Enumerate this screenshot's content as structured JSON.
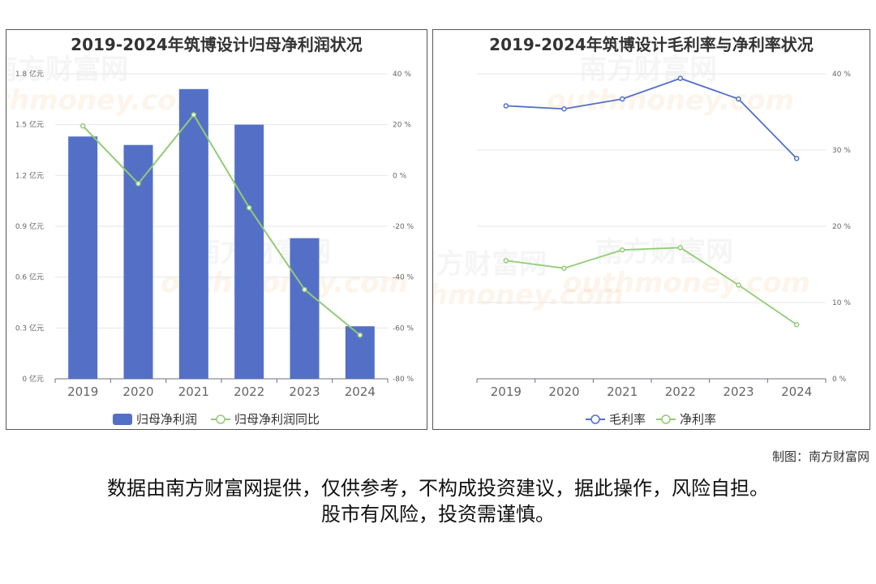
{
  "charts": [
    {
      "title": "2019-2024年筑博设计归母净利润状况",
      "legend": [
        "归母净利润",
        "归母净利润同比"
      ]
    },
    {
      "title": "2019-2024年筑博设计毛利率与净利率状况",
      "legend": [
        "毛利率",
        "净利率"
      ]
    }
  ],
  "watermark": {
    "cn": "南方财富网",
    "en": "outhmoney.com",
    "en_full": "southmoney.com"
  },
  "footer": {
    "credit": "制图：南方财富网",
    "disclaimer_line1": "数据由南方财富网提供，仅供参考，不构成投资建议，据此操作，风险自担。",
    "disclaimer_line2": "股市有风险，投资需谨慎。"
  },
  "colors": {
    "bar": "#5470c6",
    "line_green": "#91cc75",
    "line_blue": "#5470c6"
  },
  "chart_data": [
    {
      "type": "bar",
      "title": "2019-2024年筑博设计归母净利润状况",
      "categories": [
        "2019",
        "2020",
        "2021",
        "2022",
        "2023",
        "2024"
      ],
      "series": [
        {
          "name": "归母净利润",
          "type": "bar",
          "axis": "left",
          "values": [
            1.43,
            1.38,
            1.71,
            1.5,
            0.83,
            0.31
          ]
        },
        {
          "name": "归母净利润同比",
          "type": "line",
          "axis": "right",
          "values": [
            19.5,
            -3.2,
            23.9,
            -12.7,
            -44.9,
            -62.8
          ]
        }
      ],
      "left_axis": {
        "ticks": [
          "0 亿元",
          "0.3 亿元",
          "0.6 亿元",
          "0.9 亿元",
          "1.2 亿元",
          "1.5 亿元",
          "1.8 亿元"
        ],
        "ylim": [
          0,
          1.8
        ]
      },
      "right_axis": {
        "ticks": [
          "-80 %",
          "-60 %",
          "-40 %",
          "-20 %",
          "0 %",
          "20 %",
          "40 %"
        ],
        "ylim": [
          -80,
          40
        ]
      },
      "grid": true,
      "legend_position": "bottom"
    },
    {
      "type": "line",
      "title": "2019-2024年筑博设计毛利率与净利率状况",
      "categories": [
        "2019",
        "2020",
        "2021",
        "2022",
        "2023",
        "2024"
      ],
      "series": [
        {
          "name": "毛利率",
          "values": [
            35.8,
            35.4,
            36.7,
            39.4,
            36.7,
            28.9
          ]
        },
        {
          "name": "净利率",
          "values": [
            15.5,
            14.5,
            16.9,
            17.2,
            12.3,
            7.1
          ]
        }
      ],
      "right_axis": {
        "ticks": [
          "0 %",
          "10 %",
          "20 %",
          "30 %",
          "40 %"
        ],
        "ylim": [
          0,
          40
        ]
      },
      "grid": true,
      "legend_position": "bottom"
    }
  ]
}
